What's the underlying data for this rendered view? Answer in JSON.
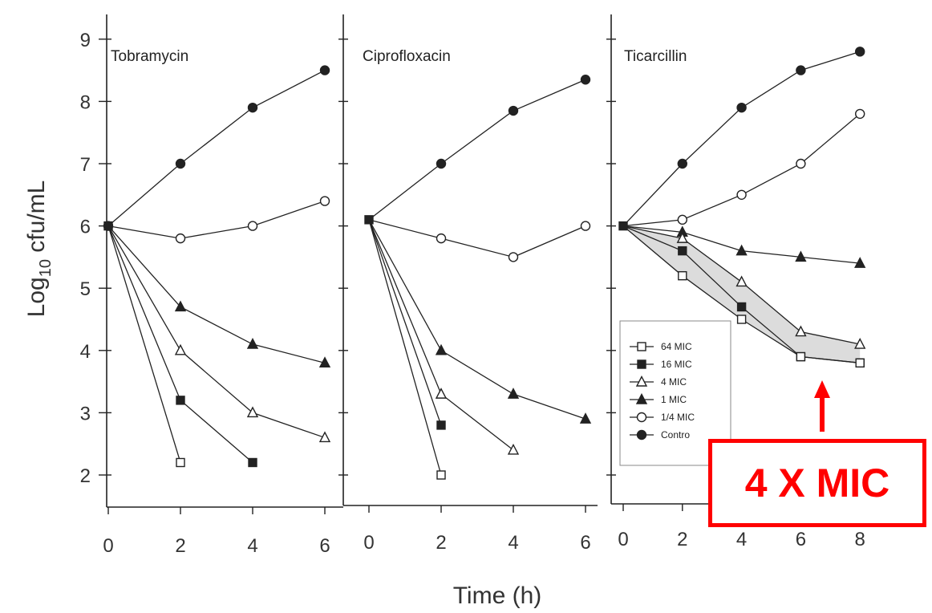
{
  "chart_data": [
    {
      "type": "line",
      "title": "Tobramycin",
      "x": [
        0,
        2,
        4,
        6
      ],
      "x_tick_labels": [
        "0",
        "2",
        "4",
        "6"
      ],
      "ylabel": "Log10 cfu/mL",
      "ylim": [
        1.5,
        9.3
      ],
      "y_ticks": [
        2,
        3,
        4,
        5,
        6,
        7,
        8,
        9
      ],
      "series": [
        {
          "name": "Control",
          "marker": "filled-circle",
          "values": [
            6.0,
            7.0,
            7.9,
            8.5
          ]
        },
        {
          "name": "1/4 MIC",
          "marker": "open-circle",
          "values": [
            6.0,
            5.8,
            6.0,
            6.4
          ]
        },
        {
          "name": "1 MIC",
          "marker": "filled-triangle",
          "values": [
            6.0,
            4.7,
            4.1,
            3.8
          ]
        },
        {
          "name": "4 MIC",
          "marker": "open-triangle",
          "values": [
            6.0,
            4.0,
            3.0,
            2.6
          ]
        },
        {
          "name": "16 MIC",
          "marker": "filled-square",
          "values": [
            6.0,
            3.2,
            2.2,
            null
          ]
        },
        {
          "name": "64 MIC",
          "marker": "open-square",
          "values": [
            6.0,
            2.2,
            null,
            null
          ]
        }
      ]
    },
    {
      "type": "line",
      "title": "Ciprofloxacin",
      "x": [
        0,
        2,
        4,
        6
      ],
      "x_tick_labels": [
        "0",
        "2",
        "4",
        "6"
      ],
      "series": [
        {
          "name": "Control",
          "marker": "filled-circle",
          "values": [
            6.1,
            7.0,
            7.85,
            8.35
          ]
        },
        {
          "name": "1/4 MIC",
          "marker": "open-circle",
          "values": [
            6.1,
            5.8,
            5.5,
            6.0
          ]
        },
        {
          "name": "1 MIC",
          "marker": "filled-triangle",
          "values": [
            6.1,
            4.0,
            3.3,
            2.9
          ]
        },
        {
          "name": "4 MIC",
          "marker": "open-triangle",
          "values": [
            6.1,
            3.3,
            2.4,
            null
          ]
        },
        {
          "name": "16 MIC",
          "marker": "filled-square",
          "values": [
            6.1,
            2.8,
            null,
            null
          ]
        },
        {
          "name": "64 MIC",
          "marker": "open-square",
          "values": [
            6.1,
            2.0,
            null,
            null
          ]
        }
      ]
    },
    {
      "type": "line",
      "title": "Ticarcillin",
      "x": [
        0,
        2,
        4,
        6,
        8
      ],
      "x_tick_labels": [
        "0",
        "2",
        "4",
        "6",
        "8"
      ],
      "series": [
        {
          "name": "Control",
          "marker": "filled-circle",
          "values": [
            6.0,
            7.0,
            7.9,
            8.5,
            8.8
          ]
        },
        {
          "name": "1/4 MIC",
          "marker": "open-circle",
          "values": [
            6.0,
            6.1,
            6.5,
            7.0,
            7.8
          ]
        },
        {
          "name": "1 MIC",
          "marker": "filled-triangle",
          "values": [
            6.0,
            5.9,
            5.6,
            5.5,
            5.4
          ]
        },
        {
          "name": "4 MIC",
          "marker": "open-triangle",
          "values": [
            6.0,
            5.8,
            5.1,
            4.3,
            4.1
          ]
        },
        {
          "name": "16 MIC",
          "marker": "filled-square",
          "values": [
            6.0,
            5.6,
            4.7,
            3.9,
            3.8
          ]
        },
        {
          "name": "64 MIC",
          "marker": "open-square",
          "values": [
            6.0,
            5.2,
            4.5,
            3.9,
            3.8
          ]
        }
      ],
      "shaded_band_between": [
        "4 MIC",
        "64 MIC"
      ],
      "legend": {
        "placement": "bottom-right",
        "entries": [
          {
            "label": "64 MIC",
            "marker": "open-square"
          },
          {
            "label": "16 MIC",
            "marker": "filled-square"
          },
          {
            "label": "4 MIC",
            "marker": "open-triangle"
          },
          {
            "label": "1 MIC",
            "marker": "filled-triangle"
          },
          {
            "label": "1/4 MIC",
            "marker": "open-circle"
          },
          {
            "label": "Contro",
            "marker": "filled-circle"
          }
        ]
      }
    }
  ],
  "labels": {
    "y_axis_main": "Log",
    "y_axis_sub": "10",
    "y_axis_rest": " cfu/mL",
    "x_axis": "Time (h)"
  },
  "callout": {
    "text": "4 X MIC",
    "color": "#ff0000",
    "arrow": "up"
  },
  "colors": {
    "ink": "#222222",
    "band": "#dcdcdc",
    "highlight": "#ff0000"
  }
}
